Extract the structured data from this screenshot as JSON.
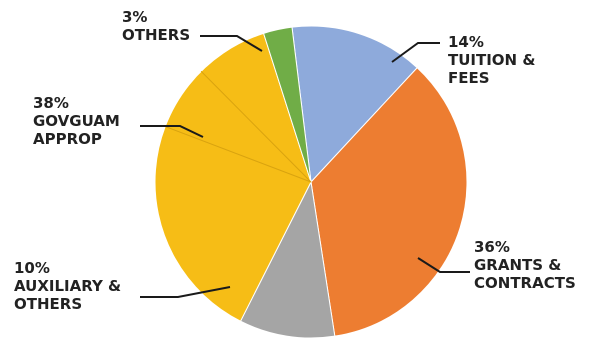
{
  "chart_data": {
    "type": "pie",
    "title": "",
    "slices": [
      {
        "label_lines": [
          "14%",
          "TUITION &",
          "FEES"
        ],
        "value": 14,
        "color": "#8eaadb"
      },
      {
        "label_lines": [
          "36%",
          "GRANTS &",
          "CONTRACTS"
        ],
        "value": 36,
        "color": "#ed7d31"
      },
      {
        "label_lines": [
          "10%",
          "AUXILIARY &",
          "OTHERS"
        ],
        "value": 10,
        "color": "#a5a5a5"
      },
      {
        "label_lines": [
          "38%",
          "GOVGUAM",
          "APPROP"
        ],
        "value": 38,
        "color": "#f6bd16"
      },
      {
        "label_lines": [
          "3%",
          "OTHERS"
        ],
        "value": 3,
        "color": "#70ad47"
      }
    ],
    "legend": "none"
  }
}
